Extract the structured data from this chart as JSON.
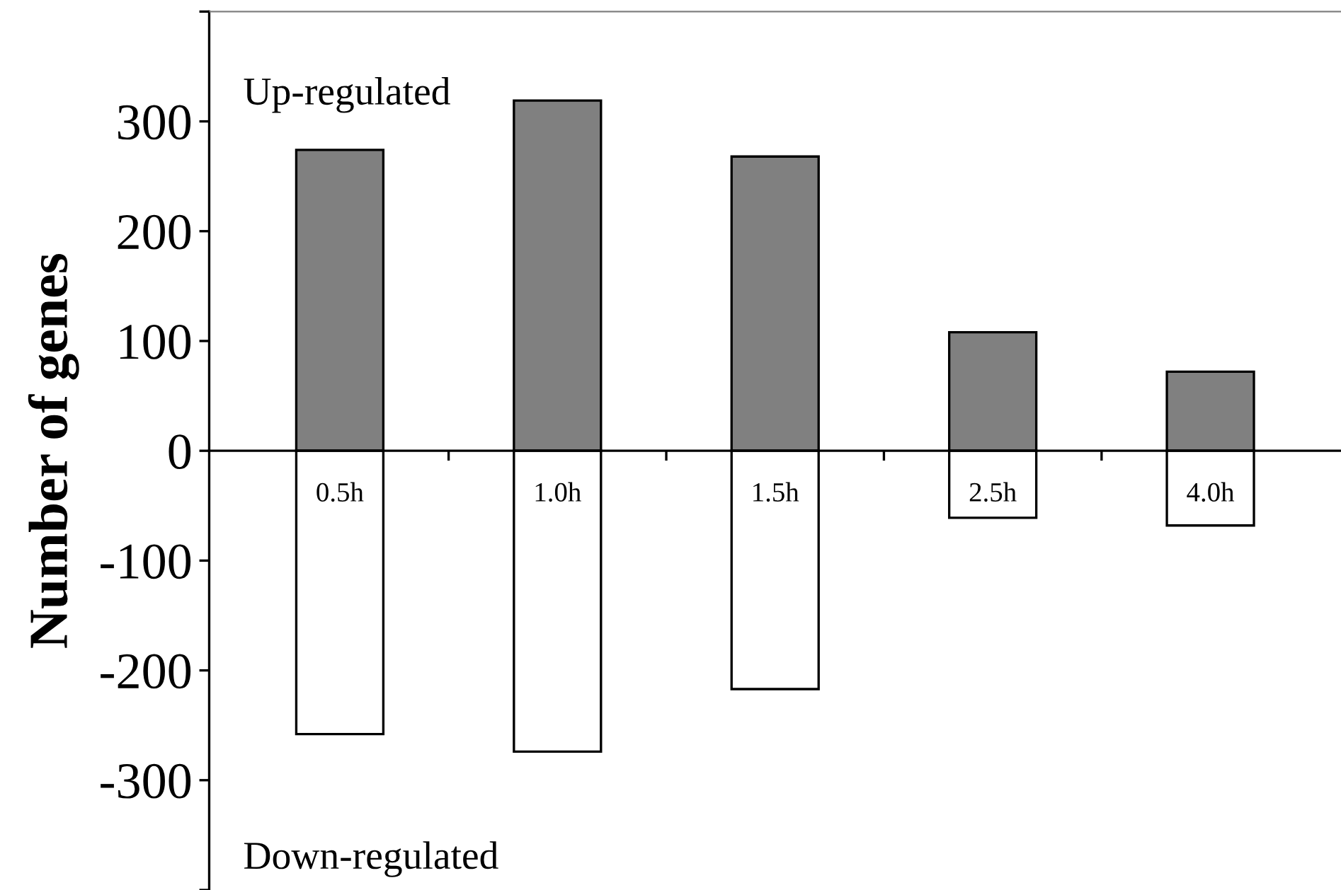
{
  "chart_data": {
    "type": "bar",
    "ylabel": "Number of genes",
    "categories": [
      "0.5h",
      "1.0h",
      "1.5h",
      "2.5h",
      "4.0h"
    ],
    "series": [
      {
        "color": "#808080",
        "values": [
          274,
          319,
          268,
          108,
          72
        ]
      },
      {
        "color": "#ffffff",
        "values": [
          -258,
          -274,
          -217,
          -61,
          -68
        ]
      }
    ],
    "ylim": [
      -400,
      400
    ],
    "yticks": [
      {
        "value": -400,
        "label": null
      },
      -300,
      -200,
      -100,
      0,
      100,
      200,
      300,
      {
        "value": 400,
        "label": null
      }
    ],
    "stacked": true,
    "grid": false,
    "legend": false,
    "annotations": [
      "Up-regulated",
      "Down-regulated"
    ]
  }
}
